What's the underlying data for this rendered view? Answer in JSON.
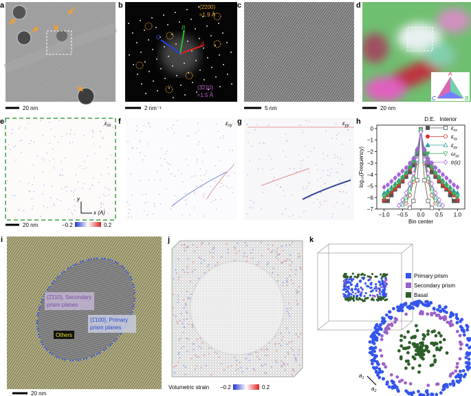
{
  "panels": {
    "a": {
      "label": "a",
      "scale_bar": "20 nm"
    },
    "b": {
      "label": "b",
      "scale_bar": "2 nm⁻¹",
      "reflection_1": "(2̄200)",
      "spacing_1": "≈1.9 Å",
      "reflection_2": "(3̄210)",
      "spacing_2": "≈1.5 Å",
      "vectors": [
        "A",
        "B",
        "C"
      ]
    },
    "c": {
      "label": "c",
      "scale_bar": "5 nm"
    },
    "d": {
      "label": "d",
      "scale_bar": "20 nm",
      "key": [
        "A",
        "B",
        "C"
      ]
    },
    "e": {
      "label": "e",
      "symbol": "ε",
      "subscript": "xx",
      "scale_bar": "20 nm",
      "axis_y": "y",
      "axis_x": "x (A)",
      "colorbar": [
        "−0.2",
        "0.2"
      ]
    },
    "f": {
      "label": "f",
      "symbol": "ε",
      "subscript": "xy"
    },
    "g": {
      "label": "g",
      "symbol": "ε",
      "subscript": "yy"
    },
    "i": {
      "label": "i",
      "secondary": [
        "{2̄110}, Secondary",
        "prism planes"
      ],
      "primary": [
        "{1̄100}, Primary",
        "prism planes"
      ],
      "others": "Others",
      "scale_bar": "20 nm"
    },
    "j": {
      "label": "j",
      "colorbar_title": "Volumetric strain",
      "colorbar": [
        "−0.2",
        "0.2"
      ]
    },
    "k": {
      "label": "k",
      "legend": [
        "Primary prism",
        "Secondary prism",
        "Basal"
      ],
      "axis_1": "a",
      "axis_1_sub": "1",
      "axis_2": "a",
      "axis_2_sub": "2"
    }
  },
  "chart_data": {
    "type": "line",
    "label": "h",
    "legend_headers": [
      "D.E.",
      "Interior"
    ],
    "x_label": "Bin center",
    "y_label": "log₁₀(Frequency)",
    "xlim": [
      -1.2,
      1.2
    ],
    "ylim": [
      -7,
      0.3
    ],
    "xticks": [
      {
        "value": -1,
        "label": "−1.0"
      },
      {
        "value": -0.5,
        "label": "−0.5"
      },
      {
        "value": 0,
        "label": "0.0"
      },
      {
        "value": 0.5,
        "label": "0.5"
      },
      {
        "value": 1,
        "label": "1.0"
      }
    ],
    "yticks": [
      0,
      {
        "value": -1,
        "label": "−1"
      },
      {
        "value": -2,
        "label": "−2"
      },
      {
        "value": -3,
        "label": "−3"
      },
      {
        "value": -4,
        "label": "−4"
      },
      {
        "value": -5,
        "label": "−5"
      },
      {
        "value": -6,
        "label": "−6"
      },
      {
        "value": -7,
        "label": "−7"
      }
    ],
    "x": [
      -1,
      -0.9,
      -0.8,
      -0.7,
      -0.6,
      -0.5,
      -0.4,
      -0.3,
      -0.2,
      -0.1,
      0,
      0.1,
      0.2,
      0.3,
      0.4,
      0.5,
      0.6,
      0.7,
      0.8,
      0.9,
      1
    ],
    "series": [
      {
        "name": "ε",
        "sub": "xx",
        "marker": "square",
        "color": "#555555",
        "values": [
          -6.3,
          -6.3,
          -5.8,
          -5.3,
          -5,
          -4.6,
          -4.2,
          -3.8,
          -3.2,
          -2.2,
          -0.1,
          -2.2,
          -3.2,
          -3.8,
          -4.2,
          -4.6,
          -5,
          -5.3,
          -5.8,
          -6.3,
          -6.3
        ],
        "interior": [
          null,
          null,
          null,
          null,
          null,
          null,
          null,
          -6.9,
          -6.3,
          -4.5,
          -0.05,
          -4.5,
          -6.3,
          -6.9,
          null,
          null,
          null,
          null,
          null,
          null,
          null
        ]
      },
      {
        "name": "ε",
        "sub": "xy",
        "marker": "circle",
        "color": "#d9302c",
        "values": [
          -6.2,
          -5.8,
          -5.5,
          -5.2,
          -4.9,
          -4.5,
          -4,
          -3.5,
          -2.9,
          -2,
          -0.2,
          -2,
          -2.9,
          -3.5,
          -4,
          -4.5,
          -4.9,
          -5.2,
          -5.5,
          -5.8,
          -6.2
        ],
        "interior": [
          null,
          null,
          null,
          null,
          null,
          null,
          -6.5,
          -5.8,
          -4.6,
          -3,
          -0.1,
          -3,
          -4.6,
          -5.8,
          -6.5,
          null,
          null,
          null,
          null,
          null,
          null
        ]
      },
      {
        "name": "ε",
        "sub": "yy",
        "marker": "triangle",
        "color": "#2a9d9a",
        "values": [
          -5.6,
          -5.4,
          -5.1,
          -4.8,
          -4.5,
          -4.2,
          -3.8,
          -3.3,
          -2.8,
          -1.9,
          -0.1,
          -1.9,
          -2.8,
          -3.3,
          -3.8,
          -4.2,
          -4.5,
          -4.8,
          -5.1,
          -5.4,
          -5.6
        ],
        "interior": [
          null,
          null,
          null,
          null,
          null,
          -6.6,
          -6,
          -5.2,
          -4.2,
          -2.8,
          -0.05,
          -2.8,
          -4.2,
          -5.2,
          -6,
          -6.6,
          null,
          null,
          null,
          null,
          null
        ]
      },
      {
        "name": "ω",
        "sub": "xy",
        "marker": "triangle-down",
        "color": "#3fae5a",
        "values": [
          -6,
          -5.7,
          -5.3,
          -5,
          -4.7,
          -4.3,
          -3.9,
          -3.4,
          -2.9,
          -2,
          -0.3,
          -2,
          -2.9,
          -3.4,
          -3.9,
          -4.3,
          -4.7,
          -5,
          -5.3,
          -5.7,
          -6
        ],
        "interior": [
          null,
          null,
          null,
          null,
          null,
          null,
          -6.3,
          -5.5,
          -4.4,
          -2.9,
          -0.2,
          -2.9,
          -4.4,
          -5.5,
          -6.3,
          null,
          null,
          null,
          null,
          null,
          null
        ]
      },
      {
        "name": "tr(ε)",
        "marker": "diamond",
        "color": "#a565d6",
        "values": [
          -5.1,
          -4.9,
          -4.6,
          -4.3,
          -4,
          -3.7,
          -3.4,
          -3,
          -2.6,
          -1.8,
          -0.3,
          -1.8,
          -2.6,
          -3,
          -3.4,
          -3.7,
          -4,
          -4.3,
          -4.6,
          -4.9,
          -5.1
        ],
        "interior": [
          null,
          null,
          null,
          null,
          -6.7,
          -6.2,
          -5.6,
          -4.8,
          -3.9,
          -2.7,
          -0.3,
          -2.7,
          -3.9,
          -4.8,
          -5.6,
          -6.2,
          -6.7,
          null,
          null,
          null,
          null
        ]
      }
    ]
  }
}
